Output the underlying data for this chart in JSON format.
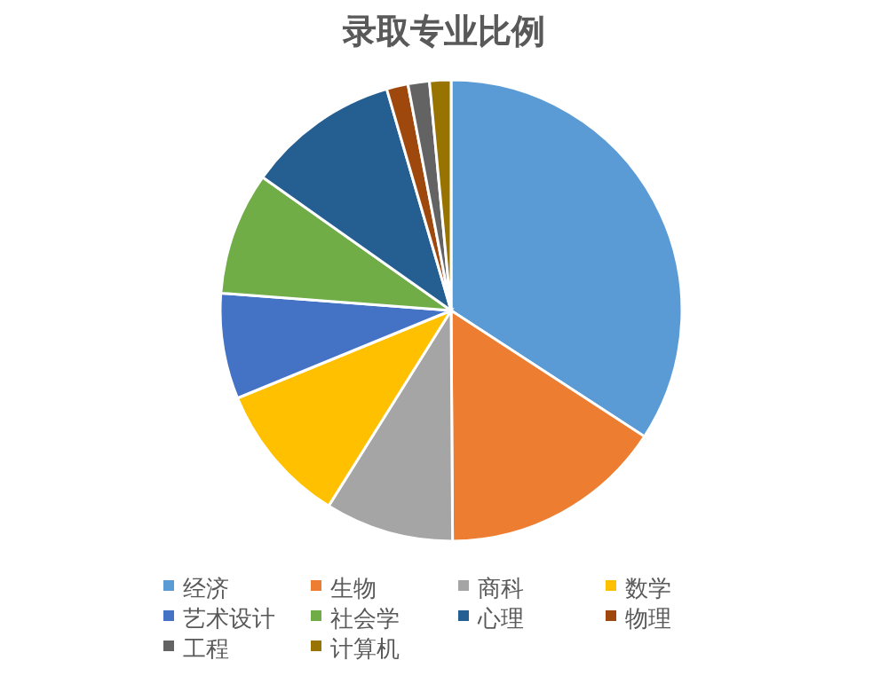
{
  "chart_data": {
    "type": "pie",
    "title": "录取专业比例",
    "categories": [
      "经济",
      "生物",
      "商科",
      "数学",
      "艺术设计",
      "社会学",
      "心理",
      "物理",
      "工程",
      "计算机"
    ],
    "values": [
      34.2,
      15.7,
      9,
      9.9,
      7.4,
      8.6,
      10.7,
      1.5,
      1.5,
      1.5
    ],
    "colors": [
      "#5b9bd5",
      "#ed7d31",
      "#a5a5a5",
      "#ffc000",
      "#4472c4",
      "#70ad47",
      "#255e91",
      "#9e480e",
      "#636363",
      "#997300"
    ],
    "legend": "bottom"
  }
}
